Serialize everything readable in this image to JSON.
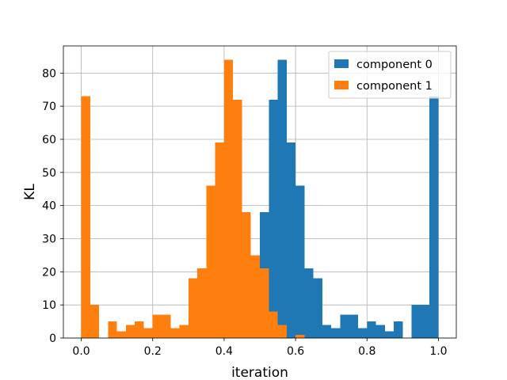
{
  "chart_data": {
    "type": "bar",
    "title": "",
    "xlabel": "iteration",
    "ylabel": "KL",
    "xlim": [
      -0.05,
      1.05
    ],
    "ylim": [
      0,
      88.2
    ],
    "grid": true,
    "legend_position": "top-right",
    "x_ticks": [
      0.0,
      0.2,
      0.4,
      0.6,
      0.8,
      1.0
    ],
    "x_tick_labels": [
      "0.0",
      "0.2",
      "0.4",
      "0.6",
      "0.8",
      "1.0"
    ],
    "y_ticks": [
      0,
      10,
      20,
      30,
      40,
      50,
      60,
      70,
      80
    ],
    "y_tick_labels": [
      "0",
      "10",
      "20",
      "30",
      "40",
      "50",
      "60",
      "70",
      "80"
    ],
    "bin_width": 0.025,
    "series": [
      {
        "name": "component 0",
        "color": "#1f77b4",
        "bins": [
          {
            "x0": 0.5,
            "count": 38
          },
          {
            "x0": 0.525,
            "count": 72
          },
          {
            "x0": 0.55,
            "count": 84
          },
          {
            "x0": 0.575,
            "count": 59
          },
          {
            "x0": 0.6,
            "count": 46
          },
          {
            "x0": 0.625,
            "count": 21
          },
          {
            "x0": 0.65,
            "count": 18
          },
          {
            "x0": 0.675,
            "count": 4
          },
          {
            "x0": 0.7,
            "count": 3
          },
          {
            "x0": 0.725,
            "count": 7
          },
          {
            "x0": 0.75,
            "count": 7
          },
          {
            "x0": 0.775,
            "count": 3
          },
          {
            "x0": 0.8,
            "count": 5
          },
          {
            "x0": 0.825,
            "count": 4
          },
          {
            "x0": 0.85,
            "count": 2
          },
          {
            "x0": 0.875,
            "count": 5
          },
          {
            "x0": 0.9,
            "count": 0
          },
          {
            "x0": 0.925,
            "count": 10
          },
          {
            "x0": 0.95,
            "count": 10
          },
          {
            "x0": 0.975,
            "count": 73
          }
        ]
      },
      {
        "name": "component 1",
        "color": "#ff7f0e",
        "bins": [
          {
            "x0": 0.0,
            "count": 73
          },
          {
            "x0": 0.025,
            "count": 10
          },
          {
            "x0": 0.05,
            "count": 0
          },
          {
            "x0": 0.075,
            "count": 5
          },
          {
            "x0": 0.1,
            "count": 2
          },
          {
            "x0": 0.125,
            "count": 4
          },
          {
            "x0": 0.15,
            "count": 5
          },
          {
            "x0": 0.175,
            "count": 3
          },
          {
            "x0": 0.2,
            "count": 7
          },
          {
            "x0": 0.225,
            "count": 7
          },
          {
            "x0": 0.25,
            "count": 3
          },
          {
            "x0": 0.275,
            "count": 4
          },
          {
            "x0": 0.3,
            "count": 18
          },
          {
            "x0": 0.325,
            "count": 21
          },
          {
            "x0": 0.35,
            "count": 46
          },
          {
            "x0": 0.375,
            "count": 59
          },
          {
            "x0": 0.4,
            "count": 84
          },
          {
            "x0": 0.425,
            "count": 72
          },
          {
            "x0": 0.45,
            "count": 38
          },
          {
            "x0": 0.475,
            "count": 25
          },
          {
            "x0": 0.5,
            "count": 21
          },
          {
            "x0": 0.525,
            "count": 8
          },
          {
            "x0": 0.55,
            "count": 4
          },
          {
            "x0": 0.575,
            "count": 0
          },
          {
            "x0": 0.6,
            "count": 1
          }
        ]
      }
    ]
  }
}
